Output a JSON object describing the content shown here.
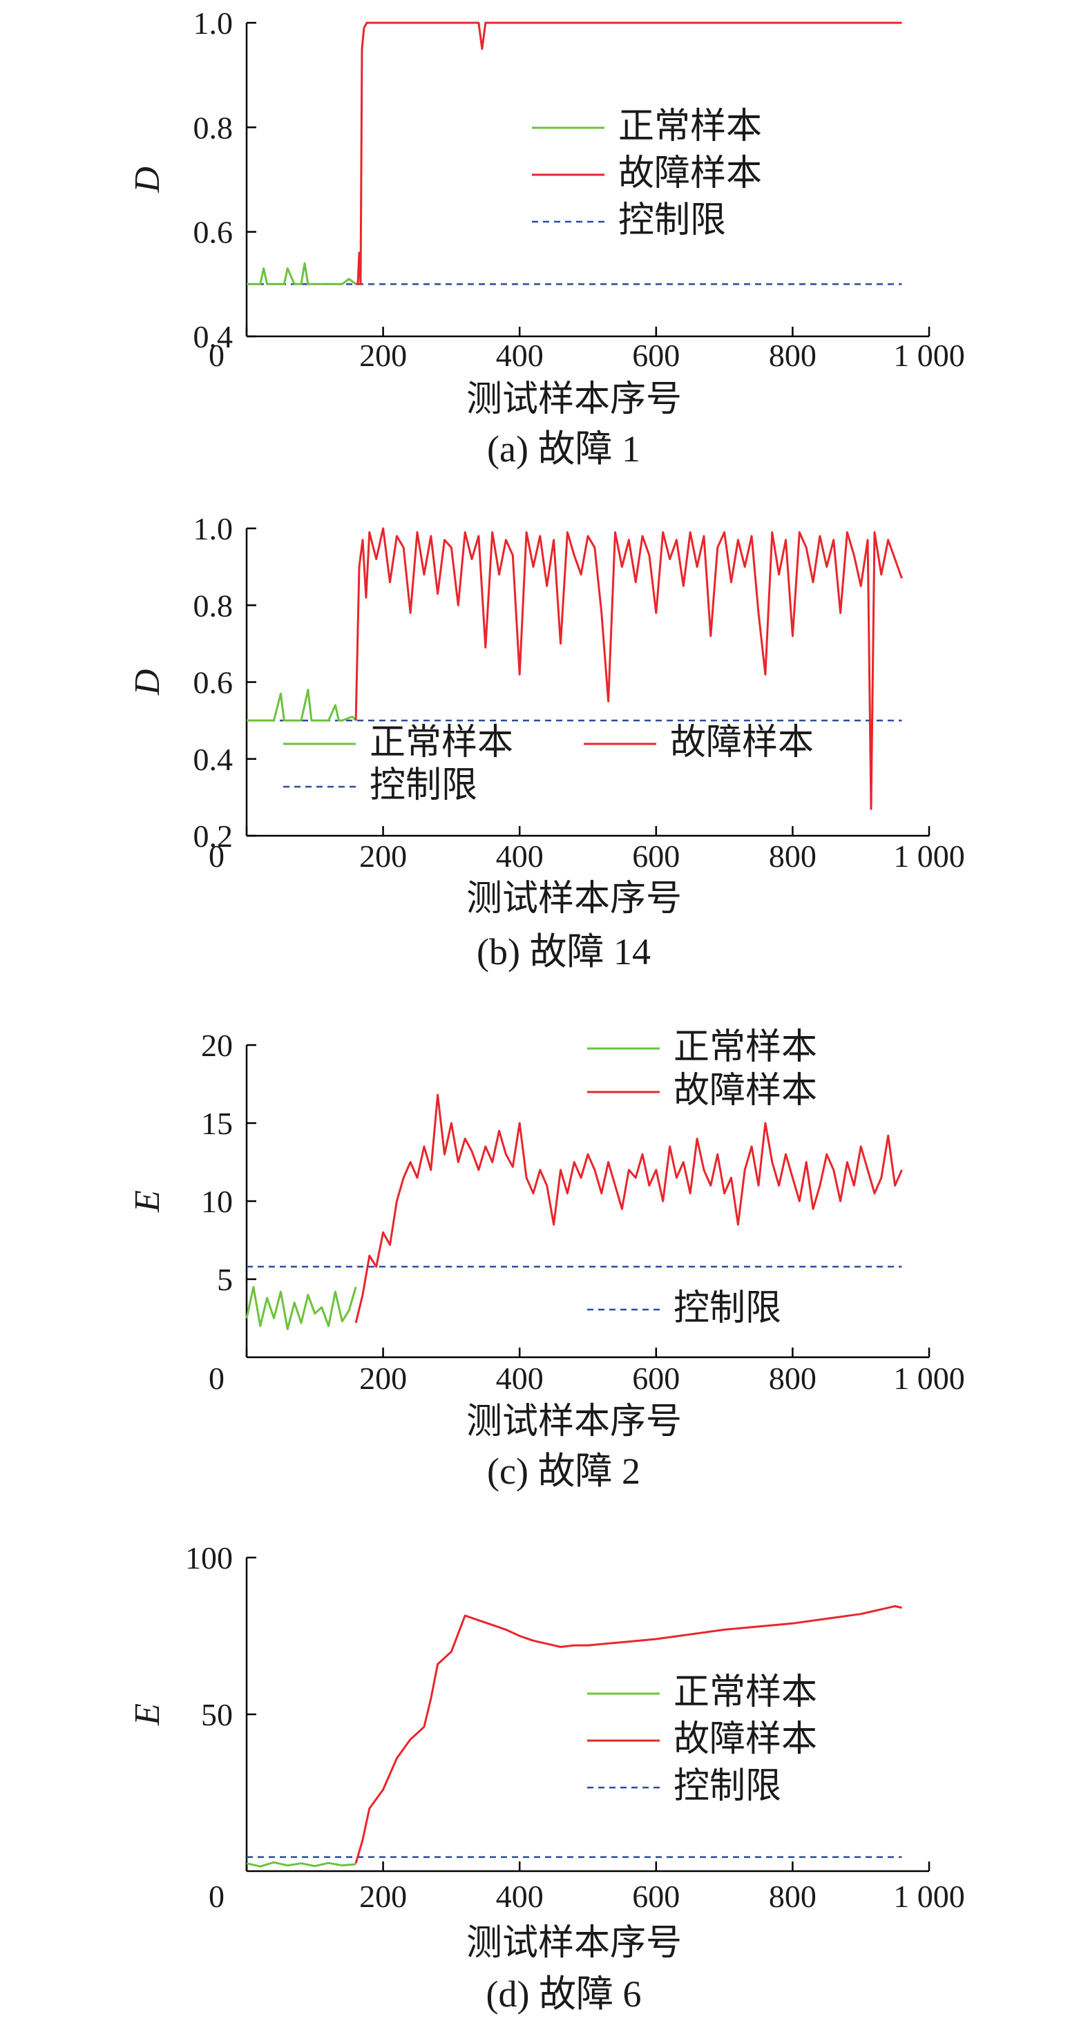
{
  "colors": {
    "normal": "#6cc23e",
    "fault": "#e8262c",
    "limit": "#2b4c9b",
    "axis": "#000000"
  },
  "chart_data": [
    {
      "type": "line",
      "caption": "(a) 故障 1",
      "xlabel": "测试样本序号",
      "ylabel": "D",
      "xlim": [
        0,
        1000
      ],
      "ylim": [
        0.4,
        1.0
      ],
      "xticks": [
        0,
        200,
        400,
        600,
        800,
        1000
      ],
      "xtick_labels": [
        "0",
        "200",
        "400",
        "600",
        "800",
        "1 000"
      ],
      "yticks": [
        0.4,
        0.6,
        0.8,
        1.0
      ],
      "ytick_labels": [
        "0.4",
        "0.6",
        "0.8",
        "1.0"
      ],
      "legend": [
        {
          "key": "normal",
          "label": "正常样本",
          "style": "solid"
        },
        {
          "key": "fault",
          "label": "故障样本",
          "style": "solid"
        },
        {
          "key": "limit",
          "label": "控制限",
          "style": "dashed"
        }
      ],
      "control_limit": 0.5,
      "series": {
        "normal": {
          "x": [
            0,
            10,
            20,
            25,
            30,
            45,
            55,
            60,
            70,
            80,
            85,
            90,
            100,
            120,
            140,
            150,
            160
          ],
          "y": [
            0.5,
            0.5,
            0.5,
            0.53,
            0.5,
            0.5,
            0.5,
            0.53,
            0.5,
            0.5,
            0.54,
            0.5,
            0.5,
            0.5,
            0.5,
            0.51,
            0.5
          ]
        },
        "fault": {
          "x": [
            160,
            163,
            165,
            167,
            169,
            172,
            176,
            180,
            200,
            250,
            300,
            340,
            345,
            350,
            360,
            400,
            500,
            600,
            700,
            800,
            900,
            960
          ],
          "y": [
            0.5,
            0.5,
            0.56,
            0.5,
            0.95,
            0.99,
            1.0,
            1.0,
            1.0,
            1.0,
            1.0,
            1.0,
            0.95,
            1.0,
            1.0,
            1.0,
            1.0,
            1.0,
            1.0,
            1.0,
            1.0,
            1.0
          ]
        }
      }
    },
    {
      "type": "line",
      "caption": "(b) 故障 14",
      "xlabel": "测试样本序号",
      "ylabel": "D",
      "xlim": [
        0,
        1000
      ],
      "ylim": [
        0.2,
        1.0
      ],
      "xticks": [
        0,
        200,
        400,
        600,
        800,
        1000
      ],
      "xtick_labels": [
        "0",
        "200",
        "400",
        "600",
        "800",
        "1 000"
      ],
      "yticks": [
        0.2,
        0.4,
        0.6,
        0.8,
        1.0
      ],
      "ytick_labels": [
        "0.2",
        "0.4",
        "0.6",
        "0.8",
        "1.0"
      ],
      "legend": [
        {
          "key": "normal",
          "label": "正常样本",
          "style": "solid"
        },
        {
          "key": "fault",
          "label": "故障样本",
          "style": "solid"
        },
        {
          "key": "limit",
          "label": "控制限",
          "style": "dashed"
        }
      ],
      "control_limit": 0.5,
      "series": {
        "normal": {
          "x": [
            0,
            20,
            40,
            50,
            55,
            60,
            80,
            90,
            95,
            100,
            120,
            130,
            135,
            140,
            155,
            160
          ],
          "y": [
            0.5,
            0.5,
            0.5,
            0.57,
            0.5,
            0.5,
            0.5,
            0.58,
            0.5,
            0.5,
            0.5,
            0.54,
            0.5,
            0.5,
            0.51,
            0.5
          ]
        },
        "fault": {
          "x": [
            160,
            165,
            170,
            175,
            180,
            190,
            200,
            210,
            220,
            230,
            240,
            250,
            260,
            270,
            280,
            290,
            300,
            310,
            320,
            330,
            340,
            350,
            360,
            370,
            380,
            390,
            400,
            410,
            420,
            430,
            440,
            450,
            460,
            470,
            480,
            490,
            500,
            510,
            520,
            530,
            540,
            550,
            560,
            570,
            580,
            590,
            600,
            610,
            620,
            630,
            640,
            650,
            660,
            670,
            680,
            690,
            700,
            710,
            720,
            730,
            740,
            750,
            760,
            770,
            780,
            790,
            800,
            810,
            820,
            830,
            840,
            850,
            860,
            870,
            880,
            890,
            900,
            910,
            915,
            920,
            930,
            940,
            950,
            960
          ],
          "y": [
            0.5,
            0.9,
            0.97,
            0.82,
            0.99,
            0.92,
            1.0,
            0.86,
            0.98,
            0.95,
            0.78,
            0.99,
            0.88,
            0.98,
            0.83,
            0.97,
            0.95,
            0.8,
            0.99,
            0.92,
            0.98,
            0.69,
            0.99,
            0.88,
            0.97,
            0.93,
            0.62,
            0.99,
            0.9,
            0.98,
            0.85,
            0.97,
            0.7,
            0.99,
            0.93,
            0.88,
            0.98,
            0.95,
            0.78,
            0.55,
            0.99,
            0.9,
            0.97,
            0.86,
            0.98,
            0.93,
            0.78,
            0.99,
            0.92,
            0.97,
            0.85,
            0.99,
            0.9,
            0.98,
            0.72,
            0.95,
            0.99,
            0.86,
            0.97,
            0.9,
            0.98,
            0.78,
            0.62,
            0.99,
            0.88,
            0.97,
            0.72,
            0.99,
            0.95,
            0.86,
            0.98,
            0.9,
            0.97,
            0.78,
            0.99,
            0.93,
            0.85,
            0.97,
            0.27,
            0.99,
            0.88,
            0.97,
            0.92,
            0.87
          ]
        }
      }
    },
    {
      "type": "line",
      "caption": "(c) 故障 2",
      "xlabel": "测试样本序号",
      "ylabel": "E",
      "xlim": [
        0,
        1000
      ],
      "ylim": [
        0,
        20
      ],
      "xticks": [
        0,
        200,
        400,
        600,
        800,
        1000
      ],
      "xtick_labels": [
        "0",
        "200",
        "400",
        "600",
        "800",
        "1 000"
      ],
      "yticks": [
        5,
        10,
        15,
        20
      ],
      "ytick_labels": [
        "5",
        "10",
        "15",
        "20"
      ],
      "legend": [
        {
          "key": "normal",
          "label": "正常样本",
          "style": "solid"
        },
        {
          "key": "fault",
          "label": "故障样本",
          "style": "solid"
        },
        {
          "key": "limit",
          "label": "控制限",
          "style": "dashed"
        }
      ],
      "control_limit": 5.8,
      "series": {
        "normal": {
          "x": [
            0,
            10,
            20,
            30,
            40,
            50,
            60,
            70,
            80,
            90,
            100,
            110,
            120,
            130,
            140,
            150,
            160
          ],
          "y": [
            2.5,
            4.5,
            2.0,
            3.8,
            2.5,
            4.2,
            1.8,
            3.5,
            2.2,
            4.0,
            2.8,
            3.2,
            2.0,
            4.2,
            2.3,
            3.0,
            4.5
          ]
        },
        "fault": {
          "x": [
            160,
            170,
            180,
            190,
            200,
            210,
            220,
            230,
            240,
            250,
            260,
            270,
            280,
            290,
            300,
            310,
            320,
            330,
            340,
            350,
            360,
            370,
            380,
            390,
            400,
            410,
            420,
            430,
            440,
            450,
            460,
            470,
            480,
            490,
            500,
            510,
            520,
            530,
            540,
            550,
            560,
            570,
            580,
            590,
            600,
            610,
            620,
            630,
            640,
            650,
            660,
            670,
            680,
            690,
            700,
            710,
            720,
            730,
            740,
            750,
            760,
            770,
            780,
            790,
            800,
            810,
            820,
            830,
            840,
            850,
            860,
            870,
            880,
            890,
            900,
            910,
            920,
            930,
            940,
            950,
            960
          ],
          "y": [
            2.2,
            4.0,
            6.5,
            5.8,
            8.0,
            7.2,
            10.0,
            11.5,
            12.5,
            11.5,
            13.5,
            12.0,
            16.8,
            13.0,
            15.0,
            12.5,
            14.0,
            13.2,
            12.0,
            13.5,
            12.5,
            14.5,
            13.0,
            12.2,
            15.0,
            11.5,
            10.5,
            12.0,
            11.0,
            8.5,
            12.0,
            10.5,
            12.5,
            11.5,
            13.0,
            12.0,
            10.5,
            12.5,
            11.0,
            9.5,
            12.0,
            11.5,
            13.0,
            11.0,
            12.0,
            10.0,
            13.5,
            11.5,
            12.5,
            10.5,
            14.0,
            12.0,
            11.0,
            13.0,
            10.5,
            11.5,
            8.5,
            12.0,
            13.5,
            11.0,
            15.0,
            12.5,
            11.0,
            13.0,
            11.5,
            10.0,
            12.5,
            9.5,
            11.0,
            13.0,
            12.0,
            10.0,
            12.5,
            11.0,
            13.5,
            12.0,
            10.5,
            11.5,
            14.2,
            11.0,
            12.0
          ]
        }
      }
    },
    {
      "type": "line",
      "caption": "(d) 故障 6",
      "xlabel": "测试样本序号",
      "ylabel": "E",
      "xlim": [
        0,
        1000
      ],
      "ylim": [
        0,
        100
      ],
      "xticks": [
        0,
        200,
        400,
        600,
        800,
        1000
      ],
      "xtick_labels": [
        "0",
        "200",
        "400",
        "600",
        "800",
        "1 000"
      ],
      "yticks": [
        50,
        100
      ],
      "ytick_labels": [
        "50",
        "100"
      ],
      "legend": [
        {
          "key": "normal",
          "label": "正常样本",
          "style": "solid"
        },
        {
          "key": "fault",
          "label": "故障样本",
          "style": "solid"
        },
        {
          "key": "limit",
          "label": "控制限",
          "style": "dashed"
        }
      ],
      "control_limit": 4.5,
      "series": {
        "normal": {
          "x": [
            0,
            20,
            40,
            60,
            80,
            100,
            120,
            140,
            160
          ],
          "y": [
            2.5,
            1.5,
            2.8,
            1.8,
            2.5,
            1.6,
            2.6,
            1.8,
            2.2
          ]
        },
        "fault": {
          "x": [
            160,
            170,
            180,
            200,
            220,
            240,
            260,
            270,
            280,
            300,
            320,
            340,
            360,
            380,
            400,
            420,
            440,
            460,
            480,
            500,
            550,
            600,
            650,
            700,
            750,
            800,
            850,
            900,
            950,
            960
          ],
          "y": [
            2.5,
            10.0,
            20.0,
            26.0,
            36.0,
            42.0,
            46.0,
            55.0,
            66.0,
            70.0,
            81.5,
            80.0,
            78.5,
            77.0,
            75.0,
            73.5,
            72.5,
            71.5,
            72.0,
            72.0,
            73.0,
            74.0,
            75.5,
            77.0,
            78.0,
            79.0,
            80.5,
            82.0,
            84.5,
            84.0
          ]
        }
      }
    }
  ]
}
